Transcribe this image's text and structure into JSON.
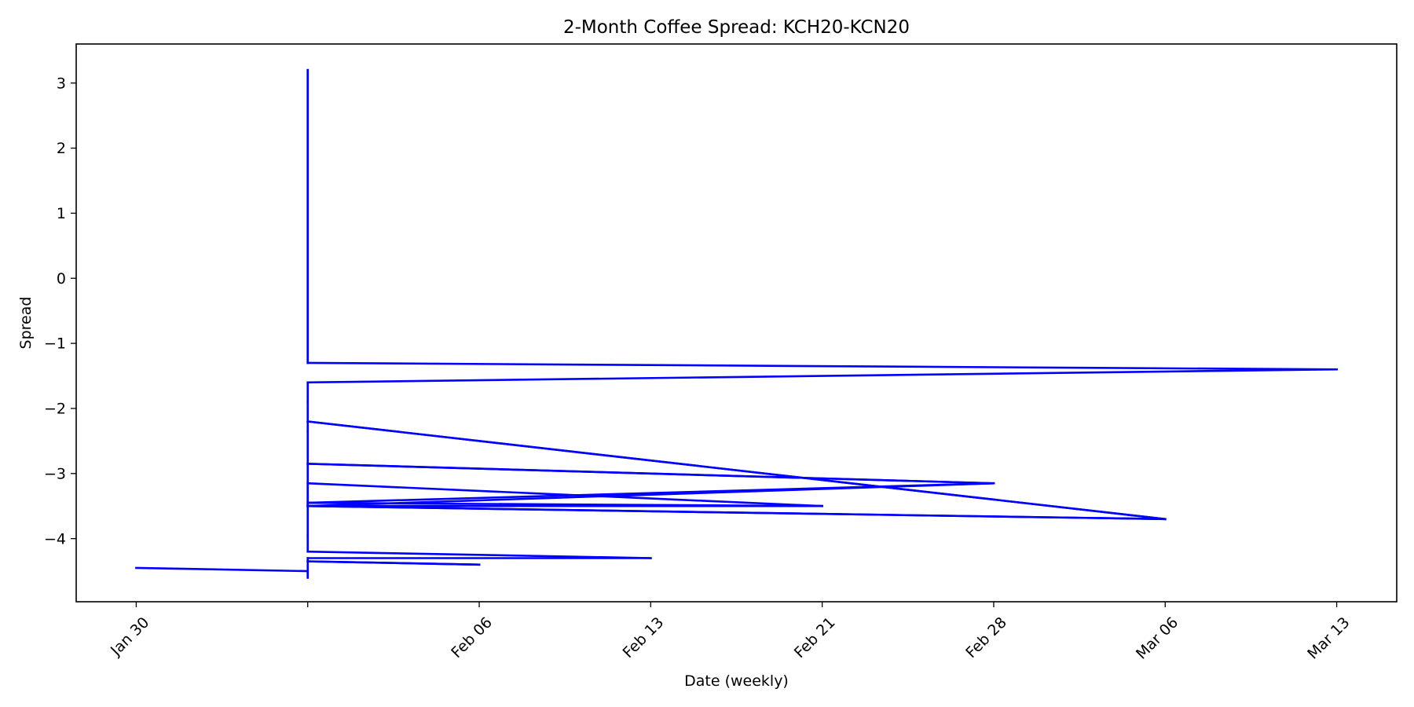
{
  "chart_data": {
    "type": "line",
    "title": "2-Month Coffee Spread: KCH20-KCN20",
    "xlabel": "Date (weekly)",
    "ylabel": "Spread",
    "xlim": [
      -0.35,
      7.35
    ],
    "ylim": [
      -4.97,
      3.6
    ],
    "x_ticks": [
      {
        "x": 0,
        "label": "Jan 30"
      },
      {
        "x": 1,
        "label": ""
      },
      {
        "x": 2,
        "label": "Feb 06"
      },
      {
        "x": 3,
        "label": "Feb 13"
      },
      {
        "x": 4,
        "label": "Feb 21"
      },
      {
        "x": 5,
        "label": "Feb 28"
      },
      {
        "x": 6,
        "label": "Mar 06"
      },
      {
        "x": 7,
        "label": "Mar 13"
      }
    ],
    "y_ticks": [
      {
        "y": 3,
        "label": "3"
      },
      {
        "y": 2,
        "label": "2"
      },
      {
        "y": 1,
        "label": "1"
      },
      {
        "y": 0,
        "label": "0"
      },
      {
        "y": -1,
        "label": "−1"
      },
      {
        "y": -2,
        "label": "−2"
      },
      {
        "y": -3,
        "label": "−3"
      },
      {
        "y": -4,
        "label": "−4"
      }
    ],
    "grid": false,
    "series": [
      {
        "color": "#0000ff",
        "points": [
          {
            "x": 0,
            "y": -4.45
          },
          {
            "x": 1,
            "y": -4.5
          },
          {
            "x": 1,
            "y": -4.6
          },
          {
            "x": 1,
            "y": -4.35
          },
          {
            "x": 2,
            "y": -4.4
          },
          {
            "x": 1,
            "y": -4.35
          },
          {
            "x": 1,
            "y": -4.3
          },
          {
            "x": 3,
            "y": -4.3
          },
          {
            "x": 1,
            "y": -4.2
          },
          {
            "x": 1,
            "y": -3.95
          },
          {
            "x": 1,
            "y": -3.5
          },
          {
            "x": 4,
            "y": -3.5
          },
          {
            "x": 1,
            "y": -3.45
          },
          {
            "x": 1,
            "y": -3.5
          },
          {
            "x": 5,
            "y": -3.15
          },
          {
            "x": 1,
            "y": -3.45
          },
          {
            "x": 1,
            "y": -3.15
          },
          {
            "x": 4,
            "y": -3.5
          },
          {
            "x": 1,
            "y": -3.5
          },
          {
            "x": 6,
            "y": -3.7
          },
          {
            "x": 1,
            "y": -3.5
          },
          {
            "x": 1,
            "y": -2.85
          },
          {
            "x": 5,
            "y": -3.15
          },
          {
            "x": 1,
            "y": -2.85
          },
          {
            "x": 1,
            "y": -2.35
          },
          {
            "x": 1,
            "y": -2.2
          },
          {
            "x": 6,
            "y": -3.7
          },
          {
            "x": 1,
            "y": -2.2
          },
          {
            "x": 1,
            "y": -1.9
          },
          {
            "x": 1,
            "y": -1.6
          },
          {
            "x": 7,
            "y": -1.4
          },
          {
            "x": 1,
            "y": -1.3
          },
          {
            "x": 1,
            "y": 3.2
          },
          {
            "x": 1,
            "y": -1.3
          }
        ]
      }
    ]
  }
}
